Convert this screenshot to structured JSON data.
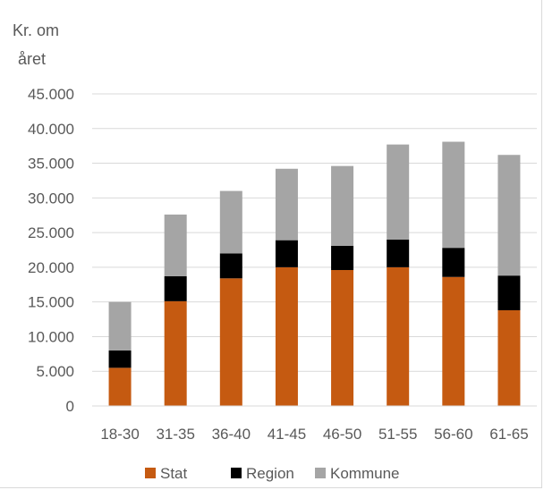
{
  "chart_data": {
    "type": "bar",
    "stacked": true,
    "ylabel": [
      "Kr. om",
      "året"
    ],
    "categories": [
      "18-30",
      "31-35",
      "36-40",
      "41-45",
      "46-50",
      "51-55",
      "56-60",
      "61-65"
    ],
    "series": [
      {
        "name": "Stat",
        "color": "#c55a11",
        "values": [
          5500,
          15100,
          18400,
          20000,
          19600,
          20000,
          18600,
          13800
        ]
      },
      {
        "name": "Region",
        "color": "#000000",
        "values": [
          2500,
          3600,
          3600,
          3900,
          3500,
          4000,
          4200,
          5000
        ]
      },
      {
        "name": "Kommune",
        "color": "#a5a5a5",
        "values": [
          7000,
          8900,
          9000,
          10300,
          11500,
          13700,
          15300,
          17400
        ]
      }
    ],
    "ylim": [
      0,
      45000
    ],
    "yticks": [
      "0",
      "5.000",
      "10.000",
      "15.000",
      "20.000",
      "25.000",
      "30.000",
      "35.000",
      "40.000",
      "45.000"
    ],
    "ytick_values": [
      0,
      5000,
      10000,
      15000,
      20000,
      25000,
      30000,
      35000,
      40000,
      45000
    ],
    "grid": true,
    "legend": "bottom"
  }
}
